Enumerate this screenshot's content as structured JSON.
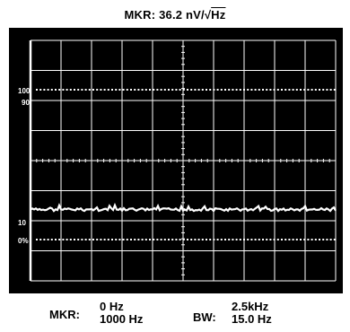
{
  "header": {
    "marker_prefix": "MKR: 36.2 nV/",
    "radical": "√",
    "unit": "Hz"
  },
  "screen": {
    "y_labels": {
      "top": "100",
      "upper": "90",
      "lower": "10",
      "bottom": "0%"
    },
    "trace_level_fraction": 0.2,
    "colors": {
      "background": "#000000",
      "graticule": "#ffffff",
      "trace": "#ffffff"
    }
  },
  "footer": {
    "marker_label": "MKR:",
    "marker_start": "0 Hz",
    "marker_span": "1000 Hz",
    "bw_label": "BW:",
    "bw_value_1": "2.5kHz",
    "bw_value_2": "15.0 Hz"
  }
}
